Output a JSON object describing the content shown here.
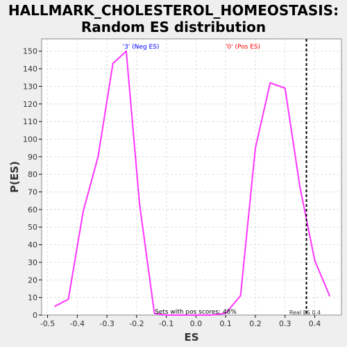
{
  "chart_data": {
    "type": "line",
    "title": [
      "HALLMARK_CHOLESTEROL_HOMEOSTASIS:",
      "Random ES distribution"
    ],
    "xlabel": "ES",
    "ylabel": "P(ES)",
    "xlim": [
      -0.52,
      0.49
    ],
    "ylim": [
      0,
      157
    ],
    "xticks": [
      -0.5,
      -0.4,
      -0.3,
      -0.2,
      -0.1,
      0.0,
      0.1,
      0.2,
      0.3,
      0.4
    ],
    "xtick_labels": [
      "-0.5",
      "-0.4",
      "-0.3",
      "-0.2",
      "-0.1",
      "0.0",
      "0.1",
      "0.2",
      "0.3",
      "0.4"
    ],
    "yticks": [
      0,
      10,
      20,
      30,
      40,
      50,
      60,
      70,
      80,
      90,
      100,
      110,
      120,
      130,
      140,
      150
    ],
    "ytick_labels": [
      "0",
      "10",
      "20",
      "30",
      "40",
      "50",
      "60",
      "70",
      "80",
      "90",
      "100",
      "110",
      "120",
      "130",
      "140",
      "150"
    ],
    "grid": true,
    "series": [
      {
        "color": "#ff33ff",
        "x": [
          -0.475,
          -0.43,
          -0.38,
          -0.33,
          -0.28,
          -0.235,
          -0.19,
          -0.14,
          -0.1,
          -0.05,
          0.0,
          0.05,
          0.1,
          0.15,
          0.2,
          0.25,
          0.3,
          0.35,
          0.4,
          0.45
        ],
        "y": [
          5,
          9,
          59,
          90,
          143,
          150,
          63,
          1,
          0,
          0,
          0,
          0,
          1,
          11,
          95,
          132,
          129,
          73,
          31,
          11
        ]
      }
    ],
    "real_es": 0.372,
    "real_es_label": "Real ES 0.4",
    "annotations": [
      {
        "text": "'3' (Neg ES)",
        "color": "#0000ff"
      },
      {
        "text": "'0' (Pos ES)",
        "color": "#ff0000"
      },
      {
        "text": "Sets with pos scores: 48%",
        "color": "#000000"
      }
    ],
    "colors": {
      "background": "#efefef",
      "plot_background": "#ffffff",
      "grid": "#dcdcdc",
      "axis": "#000000",
      "line": "#ff33ff"
    }
  }
}
